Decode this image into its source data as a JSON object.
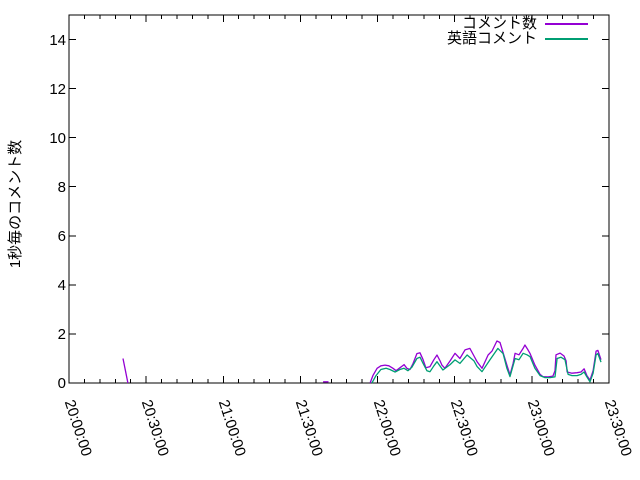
{
  "chart_data": {
    "type": "line",
    "title": "",
    "xlabel": "",
    "ylabel": "1秒毎のコメント数",
    "background": "#ffffff",
    "axis_color": "#000000",
    "grid": false,
    "legend_position": "top-right-inside",
    "ylim": [
      0,
      15
    ],
    "y_tick_values": [
      0,
      2,
      4,
      6,
      8,
      10,
      12,
      14
    ],
    "y_tick_labels": [
      "0",
      "2",
      "4",
      "6",
      "8",
      "10",
      "12",
      "14"
    ],
    "x_unit": "minutes_after_20:00:00",
    "x_range_minutes": [
      0,
      210
    ],
    "x_tick_interval_minutes": 30,
    "x_minor_tick_minutes": 6,
    "x_tick_labels": [
      "20:00:00",
      "20:30:00",
      "21:00:00",
      "21:30:00",
      "22:00:00",
      "22:30:00",
      "23:00:00",
      "23:30:00"
    ],
    "series": [
      {
        "id": "comments",
        "name": "コメント数",
        "color": "#9400d3",
        "segments": [
          [
            [
              21.0,
              1.0
            ],
            [
              22.9,
              0.0
            ]
          ],
          [
            [
              98.8,
              0.05
            ],
            [
              100.9,
              0.05
            ]
          ],
          [
            [
              117.1,
              0.0
            ],
            [
              118.2,
              0.3
            ],
            [
              119.8,
              0.6
            ],
            [
              121.3,
              0.7
            ],
            [
              122.9,
              0.73
            ],
            [
              124.4,
              0.7
            ],
            [
              126.0,
              0.6
            ],
            [
              127.2,
              0.5
            ],
            [
              128.7,
              0.62
            ],
            [
              130.3,
              0.75
            ],
            [
              131.4,
              0.6
            ],
            [
              132.6,
              0.55
            ],
            [
              133.8,
              0.8
            ],
            [
              135.3,
              1.2
            ],
            [
              136.5,
              1.23
            ],
            [
              137.7,
              0.95
            ],
            [
              138.8,
              0.62
            ],
            [
              140.4,
              0.67
            ],
            [
              141.9,
              0.95
            ],
            [
              143.1,
              1.14
            ],
            [
              144.3,
              0.9
            ],
            [
              145.0,
              0.73
            ],
            [
              146.2,
              0.6
            ],
            [
              148.2,
              0.9
            ],
            [
              150.1,
              1.21
            ],
            [
              152.0,
              1.0
            ],
            [
              154.0,
              1.35
            ],
            [
              155.9,
              1.41
            ],
            [
              157.5,
              1.1
            ],
            [
              158.7,
              0.87
            ],
            [
              160.6,
              0.6
            ],
            [
              163.0,
              1.14
            ],
            [
              164.5,
              1.3
            ],
            [
              166.4,
              1.71
            ],
            [
              167.6,
              1.65
            ],
            [
              169.2,
              1.1
            ],
            [
              170.3,
              0.73
            ],
            [
              171.5,
              0.33
            ],
            [
              172.7,
              0.8
            ],
            [
              173.5,
              1.21
            ],
            [
              175.0,
              1.15
            ],
            [
              176.6,
              1.41
            ],
            [
              177.3,
              1.55
            ],
            [
              178.5,
              1.35
            ],
            [
              179.3,
              1.2
            ],
            [
              181.2,
              0.73
            ],
            [
              183.2,
              0.35
            ],
            [
              184.3,
              0.26
            ],
            [
              186.3,
              0.25
            ],
            [
              188.2,
              0.28
            ],
            [
              189.0,
              0.5
            ],
            [
              189.4,
              1.15
            ],
            [
              191.0,
              1.22
            ],
            [
              192.5,
              1.1
            ],
            [
              193.3,
              0.9
            ],
            [
              193.7,
              0.45
            ],
            [
              195.6,
              0.4
            ],
            [
              197.6,
              0.42
            ],
            [
              199.1,
              0.45
            ],
            [
              200.3,
              0.58
            ],
            [
              201.4,
              0.3
            ],
            [
              202.6,
              0.12
            ],
            [
              203.8,
              0.5
            ],
            [
              205.0,
              1.3
            ],
            [
              205.7,
              1.33
            ],
            [
              206.9,
              0.95
            ]
          ]
        ]
      },
      {
        "id": "english-comments",
        "name": "英語コメント",
        "color": "#009e73",
        "segments": [
          [
            [
              117.8,
              0.0
            ],
            [
              119.4,
              0.3
            ],
            [
              121.3,
              0.55
            ],
            [
              123.3,
              0.6
            ],
            [
              124.8,
              0.55
            ],
            [
              126.8,
              0.45
            ],
            [
              128.7,
              0.55
            ],
            [
              130.3,
              0.6
            ],
            [
              131.8,
              0.5
            ],
            [
              133.4,
              0.65
            ],
            [
              135.3,
              1.0
            ],
            [
              136.5,
              1.05
            ],
            [
              137.7,
              0.8
            ],
            [
              139.2,
              0.5
            ],
            [
              140.4,
              0.46
            ],
            [
              141.9,
              0.7
            ],
            [
              143.1,
              0.87
            ],
            [
              145.4,
              0.53
            ],
            [
              148.2,
              0.75
            ],
            [
              150.1,
              0.94
            ],
            [
              152.0,
              0.8
            ],
            [
              154.8,
              1.14
            ],
            [
              157.5,
              0.9
            ],
            [
              158.7,
              0.67
            ],
            [
              160.6,
              0.46
            ],
            [
              163.7,
              0.94
            ],
            [
              166.8,
              1.41
            ],
            [
              168.8,
              1.2
            ],
            [
              170.3,
              0.6
            ],
            [
              171.5,
              0.26
            ],
            [
              173.5,
              1.0
            ],
            [
              175.0,
              0.95
            ],
            [
              176.6,
              1.21
            ],
            [
              178.1,
              1.15
            ],
            [
              179.3,
              1.07
            ],
            [
              181.2,
              0.6
            ],
            [
              183.2,
              0.3
            ],
            [
              185.1,
              0.22
            ],
            [
              187.1,
              0.22
            ],
            [
              189.0,
              0.25
            ],
            [
              189.8,
              1.0
            ],
            [
              191.3,
              1.05
            ],
            [
              192.9,
              0.95
            ],
            [
              194.1,
              0.35
            ],
            [
              195.6,
              0.3
            ],
            [
              197.6,
              0.3
            ],
            [
              199.1,
              0.35
            ],
            [
              200.3,
              0.45
            ],
            [
              201.4,
              0.25
            ],
            [
              202.6,
              0.05
            ],
            [
              203.8,
              0.4
            ],
            [
              205.0,
              1.15
            ],
            [
              205.7,
              1.2
            ],
            [
              206.9,
              0.85
            ]
          ]
        ]
      }
    ]
  }
}
